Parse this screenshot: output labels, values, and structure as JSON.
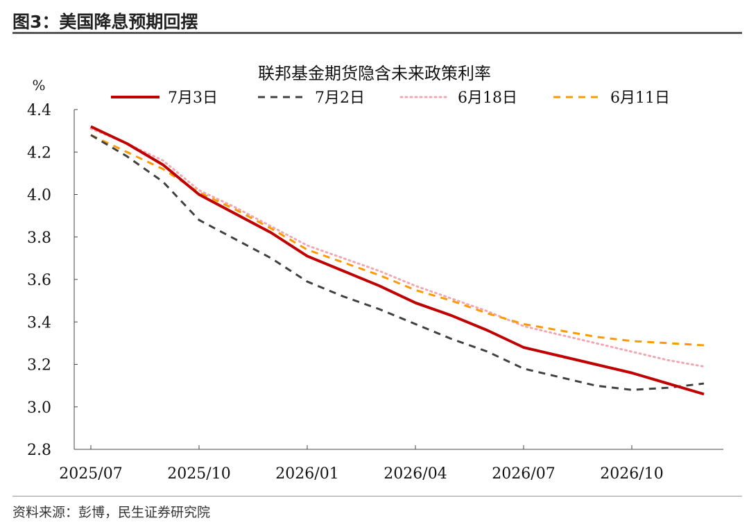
{
  "figure_header": "图3：美国降息预期回摆",
  "source_note": "资料来源：彭博，民生证券研究院",
  "chart_data": {
    "type": "line",
    "title": "联邦基金期货隐含未来政策利率",
    "ylabel": "%",
    "xlabel": "",
    "ylim": [
      2.8,
      4.4
    ],
    "yticks": [
      2.8,
      3.0,
      3.2,
      3.4,
      3.6,
      3.8,
      4.0,
      4.2,
      4.4
    ],
    "ytick_labels": [
      "2.8",
      "3.0",
      "3.2",
      "3.4",
      "3.6",
      "3.8",
      "4.0",
      "4.2",
      "4.4"
    ],
    "x": [
      "2025/07",
      "2025/08",
      "2025/09",
      "2025/10",
      "2025/11",
      "2025/12",
      "2026/01",
      "2026/02",
      "2026/03",
      "2026/04",
      "2026/05",
      "2026/06",
      "2026/07",
      "2026/08",
      "2026/09",
      "2026/10",
      "2026/11",
      "2026/12"
    ],
    "xtick_labels": [
      "2025/07",
      "2025/10",
      "2026/01",
      "2026/04",
      "2026/07",
      "2026/10"
    ],
    "legend_position": "top",
    "grid": false,
    "series": [
      {
        "name": "7月3日",
        "color": "#c00000",
        "style": "solid",
        "values": [
          4.32,
          4.24,
          4.14,
          4.0,
          3.91,
          3.82,
          3.71,
          3.64,
          3.57,
          3.49,
          3.43,
          3.36,
          3.28,
          3.24,
          3.2,
          3.16,
          3.11,
          3.06
        ]
      },
      {
        "name": "7月2日",
        "color": "#404040",
        "style": "dashed",
        "values": [
          4.28,
          4.18,
          4.06,
          3.88,
          3.79,
          3.7,
          3.59,
          3.52,
          3.46,
          3.39,
          3.32,
          3.26,
          3.18,
          3.14,
          3.1,
          3.08,
          3.09,
          3.11
        ]
      },
      {
        "name": "6月18日",
        "color": "#f4a6b0",
        "style": "dotted",
        "values": [
          4.31,
          4.24,
          4.16,
          4.02,
          3.94,
          3.85,
          3.76,
          3.7,
          3.64,
          3.57,
          3.51,
          3.45,
          3.38,
          3.34,
          3.3,
          3.26,
          3.22,
          3.19
        ]
      },
      {
        "name": "6月11日",
        "color": "#ff9900",
        "style": "dashed",
        "values": [
          4.28,
          4.2,
          4.12,
          4.01,
          3.93,
          3.84,
          3.74,
          3.68,
          3.62,
          3.55,
          3.5,
          3.44,
          3.39,
          3.36,
          3.33,
          3.31,
          3.3,
          3.29
        ]
      }
    ]
  }
}
